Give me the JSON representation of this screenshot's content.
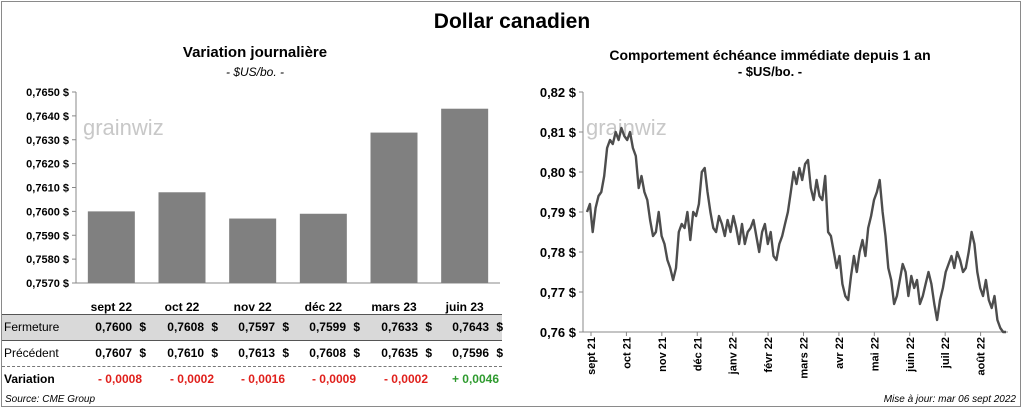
{
  "title": "Dollar canadien",
  "left": {
    "title": "Variation  journalière",
    "unit": "- $US/bo. -",
    "watermark": "grainwiz"
  },
  "right": {
    "title": "Comportement échéance immédiate depuis 1 an",
    "unit": "- $US/bo. -",
    "watermark": "grainwiz"
  },
  "table": {
    "rows": [
      {
        "label": "Fermeture",
        "values": [
          "0,7600",
          "0,7608",
          "0,7597",
          "0,7599",
          "0,7633",
          "0,7643"
        ],
        "currency": "$"
      },
      {
        "label": "Précédent",
        "values": [
          "0,7607",
          "0,7610",
          "0,7613",
          "0,7608",
          "0,7635",
          "0,7596"
        ],
        "currency": "$"
      },
      {
        "label": "Variation",
        "values": [
          "- 0,0008",
          "- 0,0002",
          "- 0,0016",
          "- 0,0009",
          "- 0,0002",
          "+ 0,0046"
        ]
      }
    ]
  },
  "footer": {
    "source": "Source: CME Group",
    "updated": "Mise à jour: mar 06 sept 2022"
  },
  "colors": {
    "bar": "#808080",
    "line": "#4d4d4d",
    "negative": "#e0201c",
    "positive": "#2f9b2f",
    "fermeture_bg": "#d9d9d9"
  },
  "chart_data": [
    {
      "type": "bar",
      "title": "Variation  journalière",
      "subtitle": "- $US/bo. -",
      "categories": [
        "sept 22",
        "oct 22",
        "nov 22",
        "déc 22",
        "mars 23",
        "juin 23"
      ],
      "values": [
        0.76,
        0.7608,
        0.7597,
        0.7599,
        0.7633,
        0.7643
      ],
      "ylim": [
        0.757,
        0.765
      ],
      "yticks": [
        "0,7570 $",
        "0,7580 $",
        "0,7590 $",
        "0,7600 $",
        "0,7610 $",
        "0,7620 $",
        "0,7630 $",
        "0,7640 $",
        "0,7650 $"
      ],
      "ytick_values": [
        0.757,
        0.758,
        0.759,
        0.76,
        0.761,
        0.762,
        0.763,
        0.764,
        0.765
      ],
      "grid": false
    },
    {
      "type": "line",
      "title": "Comportement échéance immédiate depuis 1 an",
      "subtitle": "- $US/bo. -",
      "xlabels": [
        "sept 21",
        "oct 21",
        "nov 21",
        "déc 21",
        "janv 22",
        "févr 22",
        "mars 22",
        "avr 22",
        "mai 22",
        "juin 22",
        "juil 22",
        "août 22"
      ],
      "ylim": [
        0.76,
        0.82
      ],
      "yticks": [
        "0,76 $",
        "0,77 $",
        "0,78 $",
        "0,79 $",
        "0,80 $",
        "0,81 $",
        "0,82 $"
      ],
      "ytick_values": [
        0.76,
        0.77,
        0.78,
        0.79,
        0.8,
        0.81,
        0.82
      ],
      "grid": false,
      "series": [
        {
          "values": [
            0.79,
            0.792,
            0.785,
            0.791,
            0.794,
            0.795,
            0.799,
            0.806,
            0.808,
            0.807,
            0.81,
            0.808,
            0.811,
            0.809,
            0.808,
            0.81,
            0.806,
            0.804,
            0.796,
            0.799,
            0.795,
            0.793,
            0.788,
            0.784,
            0.785,
            0.79,
            0.784,
            0.782,
            0.778,
            0.776,
            0.773,
            0.776,
            0.785,
            0.787,
            0.786,
            0.79,
            0.783,
            0.79,
            0.789,
            0.792,
            0.8,
            0.801,
            0.795,
            0.79,
            0.786,
            0.785,
            0.789,
            0.787,
            0.784,
            0.788,
            0.785,
            0.789,
            0.786,
            0.782,
            0.787,
            0.782,
            0.785,
            0.786,
            0.788,
            0.784,
            0.78,
            0.785,
            0.787,
            0.782,
            0.785,
            0.779,
            0.778,
            0.782,
            0.784,
            0.787,
            0.79,
            0.795,
            0.8,
            0.797,
            0.801,
            0.798,
            0.802,
            0.803,
            0.796,
            0.793,
            0.798,
            0.794,
            0.793,
            0.799,
            0.785,
            0.784,
            0.78,
            0.776,
            0.779,
            0.772,
            0.769,
            0.768,
            0.774,
            0.779,
            0.775,
            0.78,
            0.783,
            0.779,
            0.786,
            0.789,
            0.793,
            0.795,
            0.798,
            0.79,
            0.784,
            0.776,
            0.773,
            0.767,
            0.769,
            0.773,
            0.777,
            0.775,
            0.769,
            0.774,
            0.771,
            0.773,
            0.767,
            0.769,
            0.772,
            0.775,
            0.772,
            0.767,
            0.763,
            0.768,
            0.771,
            0.775,
            0.777,
            0.779,
            0.776,
            0.78,
            0.778,
            0.775,
            0.776,
            0.78,
            0.785,
            0.782,
            0.775,
            0.771,
            0.769,
            0.773,
            0.768,
            0.766,
            0.769,
            0.763,
            0.761,
            0.76,
            0.76
          ]
        }
      ]
    }
  ]
}
